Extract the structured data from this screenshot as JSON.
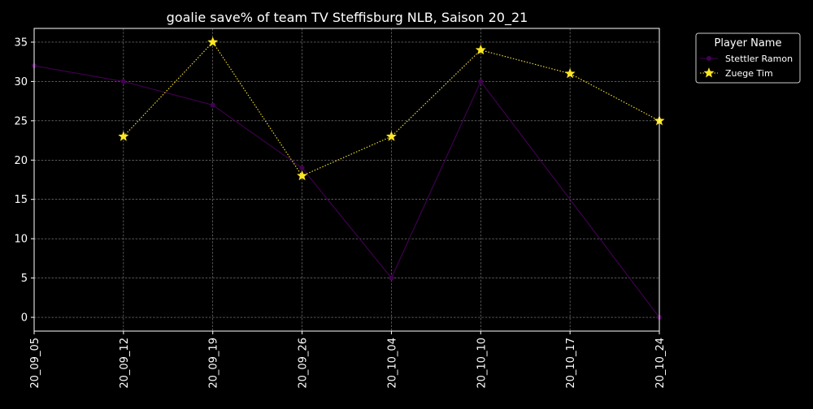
{
  "chart_data": {
    "type": "line",
    "title": "goalie save% of team TV Steffisburg NLB, Saison 20_21",
    "xlabel": "",
    "ylabel": "",
    "categories": [
      "20_09_05",
      "20_09_12",
      "20_09_19",
      "20_09_26",
      "20_10_04",
      "20_10_10",
      "20_10_17",
      "20_10_24"
    ],
    "ylim": [
      -1.75,
      36.75
    ],
    "yticks": [
      0,
      5,
      10,
      15,
      20,
      25,
      30,
      35
    ],
    "grid": true,
    "legend": {
      "title": "Player Name",
      "placement": "top-right, outside plot area"
    },
    "series": [
      {
        "name": "Stettler Ramon",
        "color": "#440154",
        "line_style": "solid",
        "marker": "circle",
        "values": [
          32,
          30,
          27,
          19,
          5,
          30,
          null,
          0
        ]
      },
      {
        "name": "Zuege Tim",
        "color": "#fde725",
        "line_style": "dotted",
        "marker": "star",
        "values": [
          null,
          23,
          35,
          18,
          23,
          34,
          31,
          25
        ]
      }
    ]
  }
}
